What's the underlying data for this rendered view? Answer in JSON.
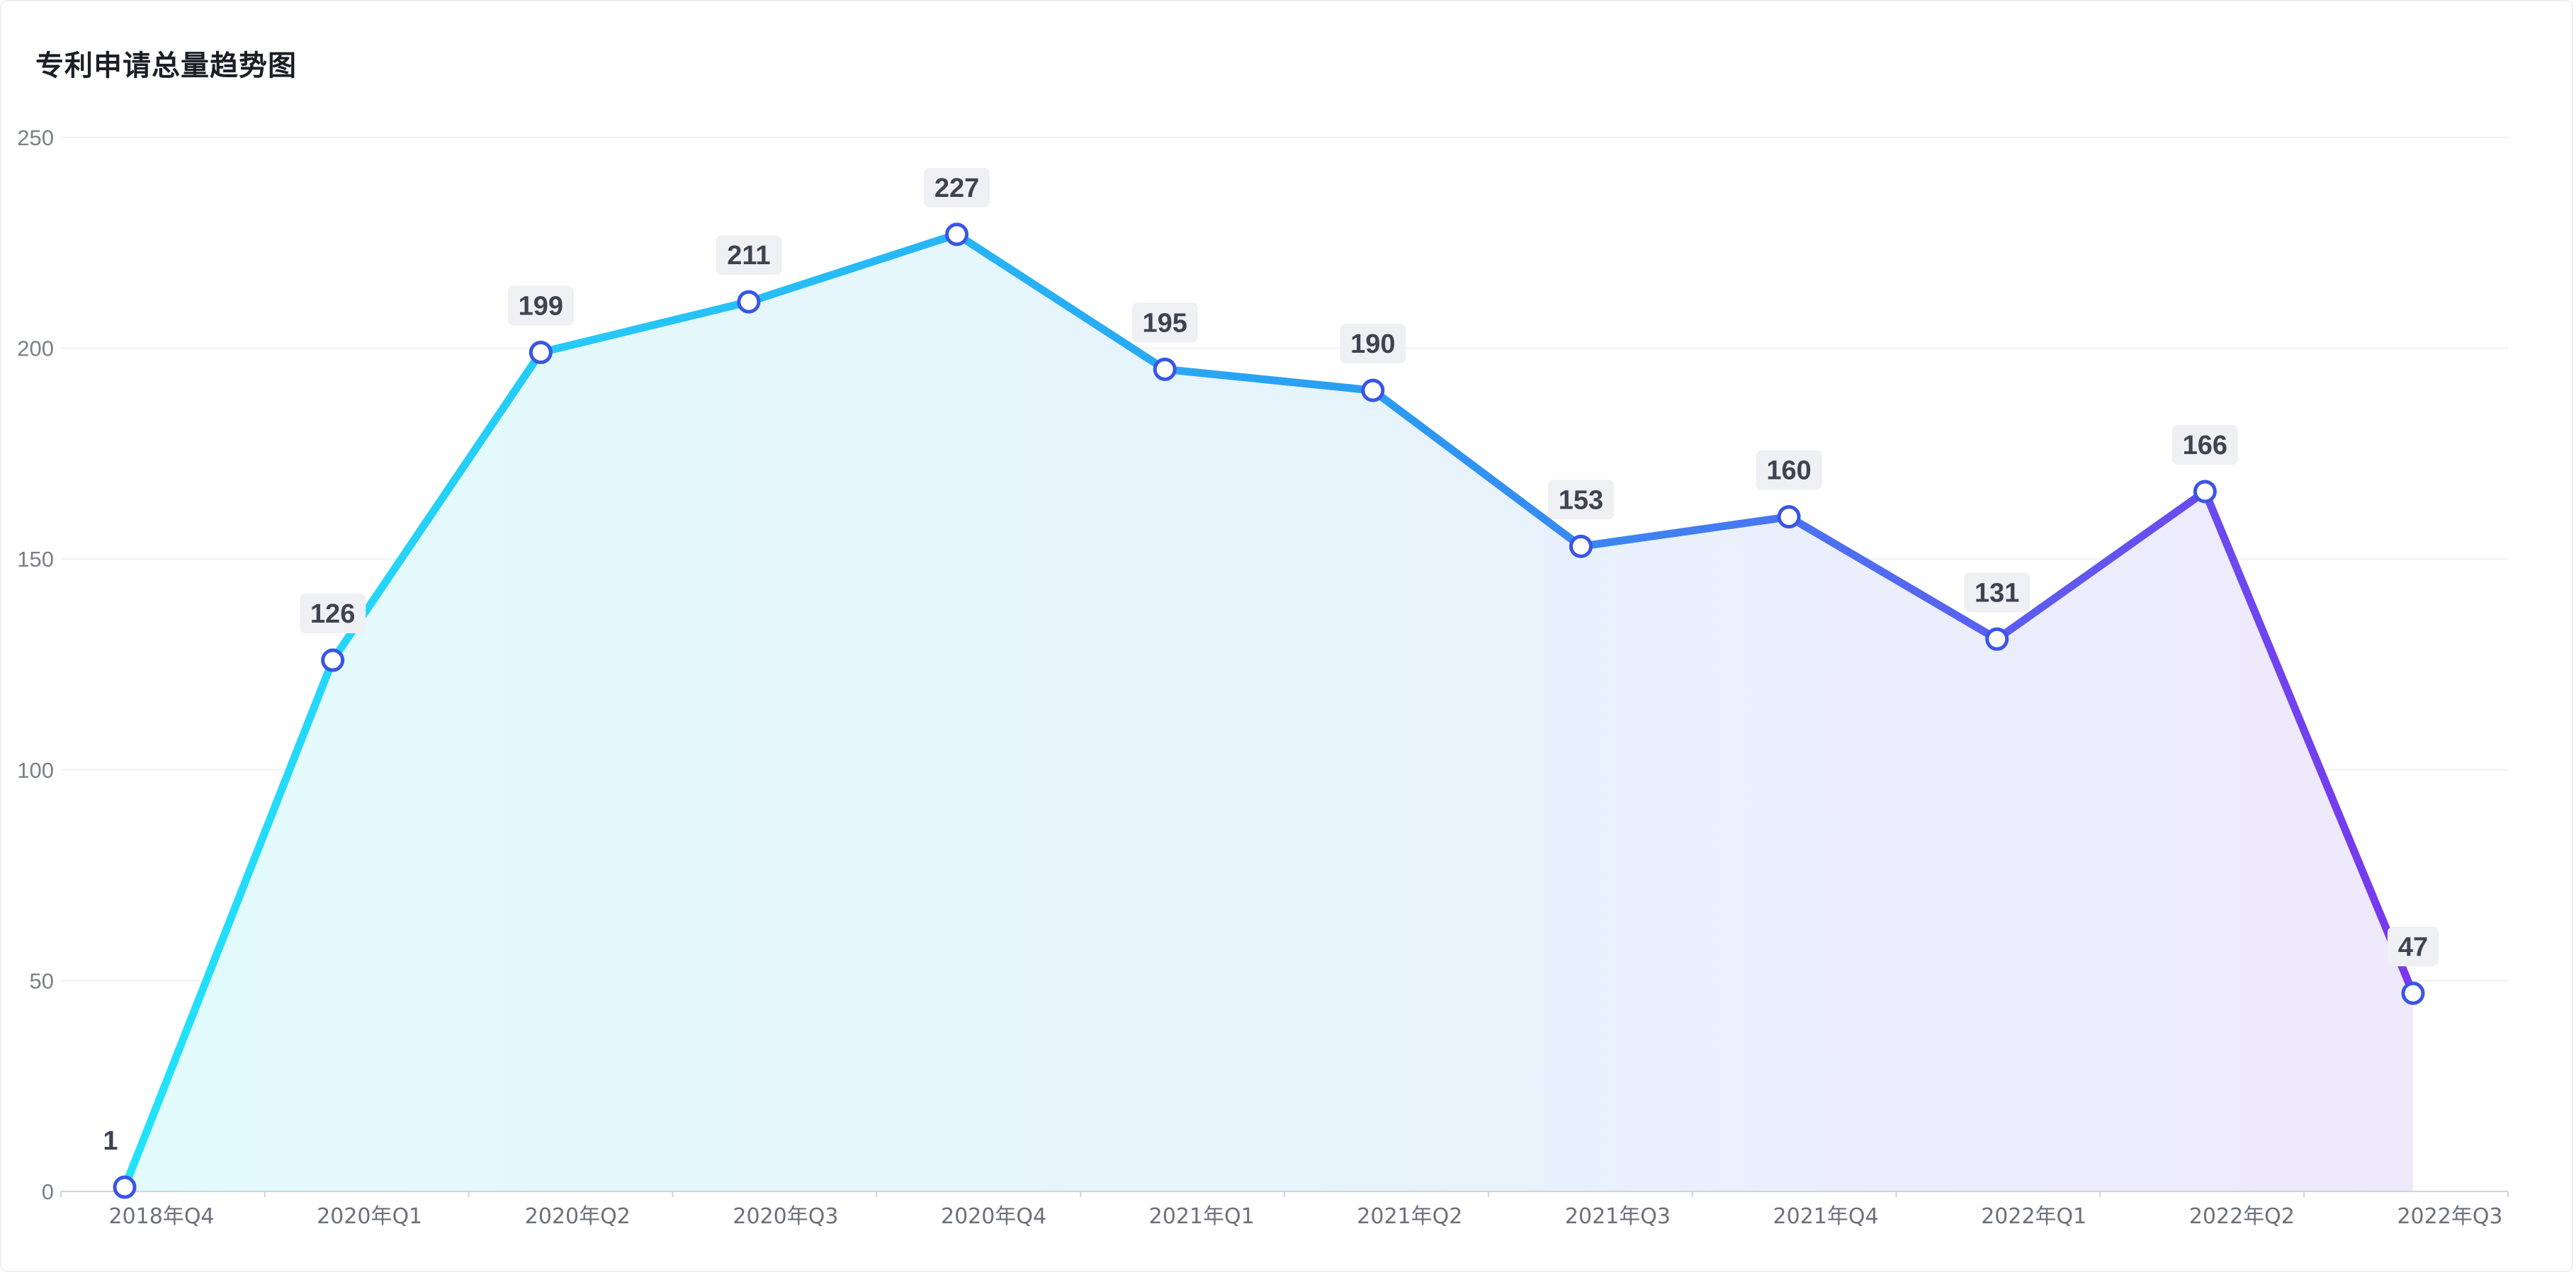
{
  "chart_data": {
    "type": "area",
    "title": "专利申请总量趋势图",
    "xlabel": "",
    "ylabel": "",
    "ylim": [
      0,
      250
    ],
    "yticks": [
      0,
      50,
      100,
      150,
      200,
      250
    ],
    "grid": true,
    "legend": "none",
    "categories": [
      "2018年Q4",
      "2020年Q1",
      "2020年Q2",
      "2020年Q3",
      "2020年Q4",
      "2021年Q1",
      "2021年Q2",
      "2021年Q3",
      "2021年Q4",
      "2022年Q1",
      "2022年Q2",
      "2022年Q3"
    ],
    "series": [
      {
        "values": [
          1,
          126,
          199,
          211,
          227,
          195,
          190,
          153,
          160,
          131,
          166,
          47
        ],
        "data_labels": [
          "1",
          "126",
          "199",
          "211",
          "227",
          "195",
          "190",
          "153",
          "160",
          "131",
          "166",
          "47"
        ]
      }
    ],
    "colors": {
      "line_start": "#22e3fb",
      "line_mid": "#2a9cf2",
      "line_end": "#7a36ee",
      "marker_stroke": "#3a55e6",
      "marker_fill": "#ffffff",
      "label_bg": "#eef0f4",
      "area_start": "#e3fbfd",
      "area_end": "#efe9fc",
      "grid": "#eef0f3",
      "axis": "#cfd3da"
    }
  }
}
